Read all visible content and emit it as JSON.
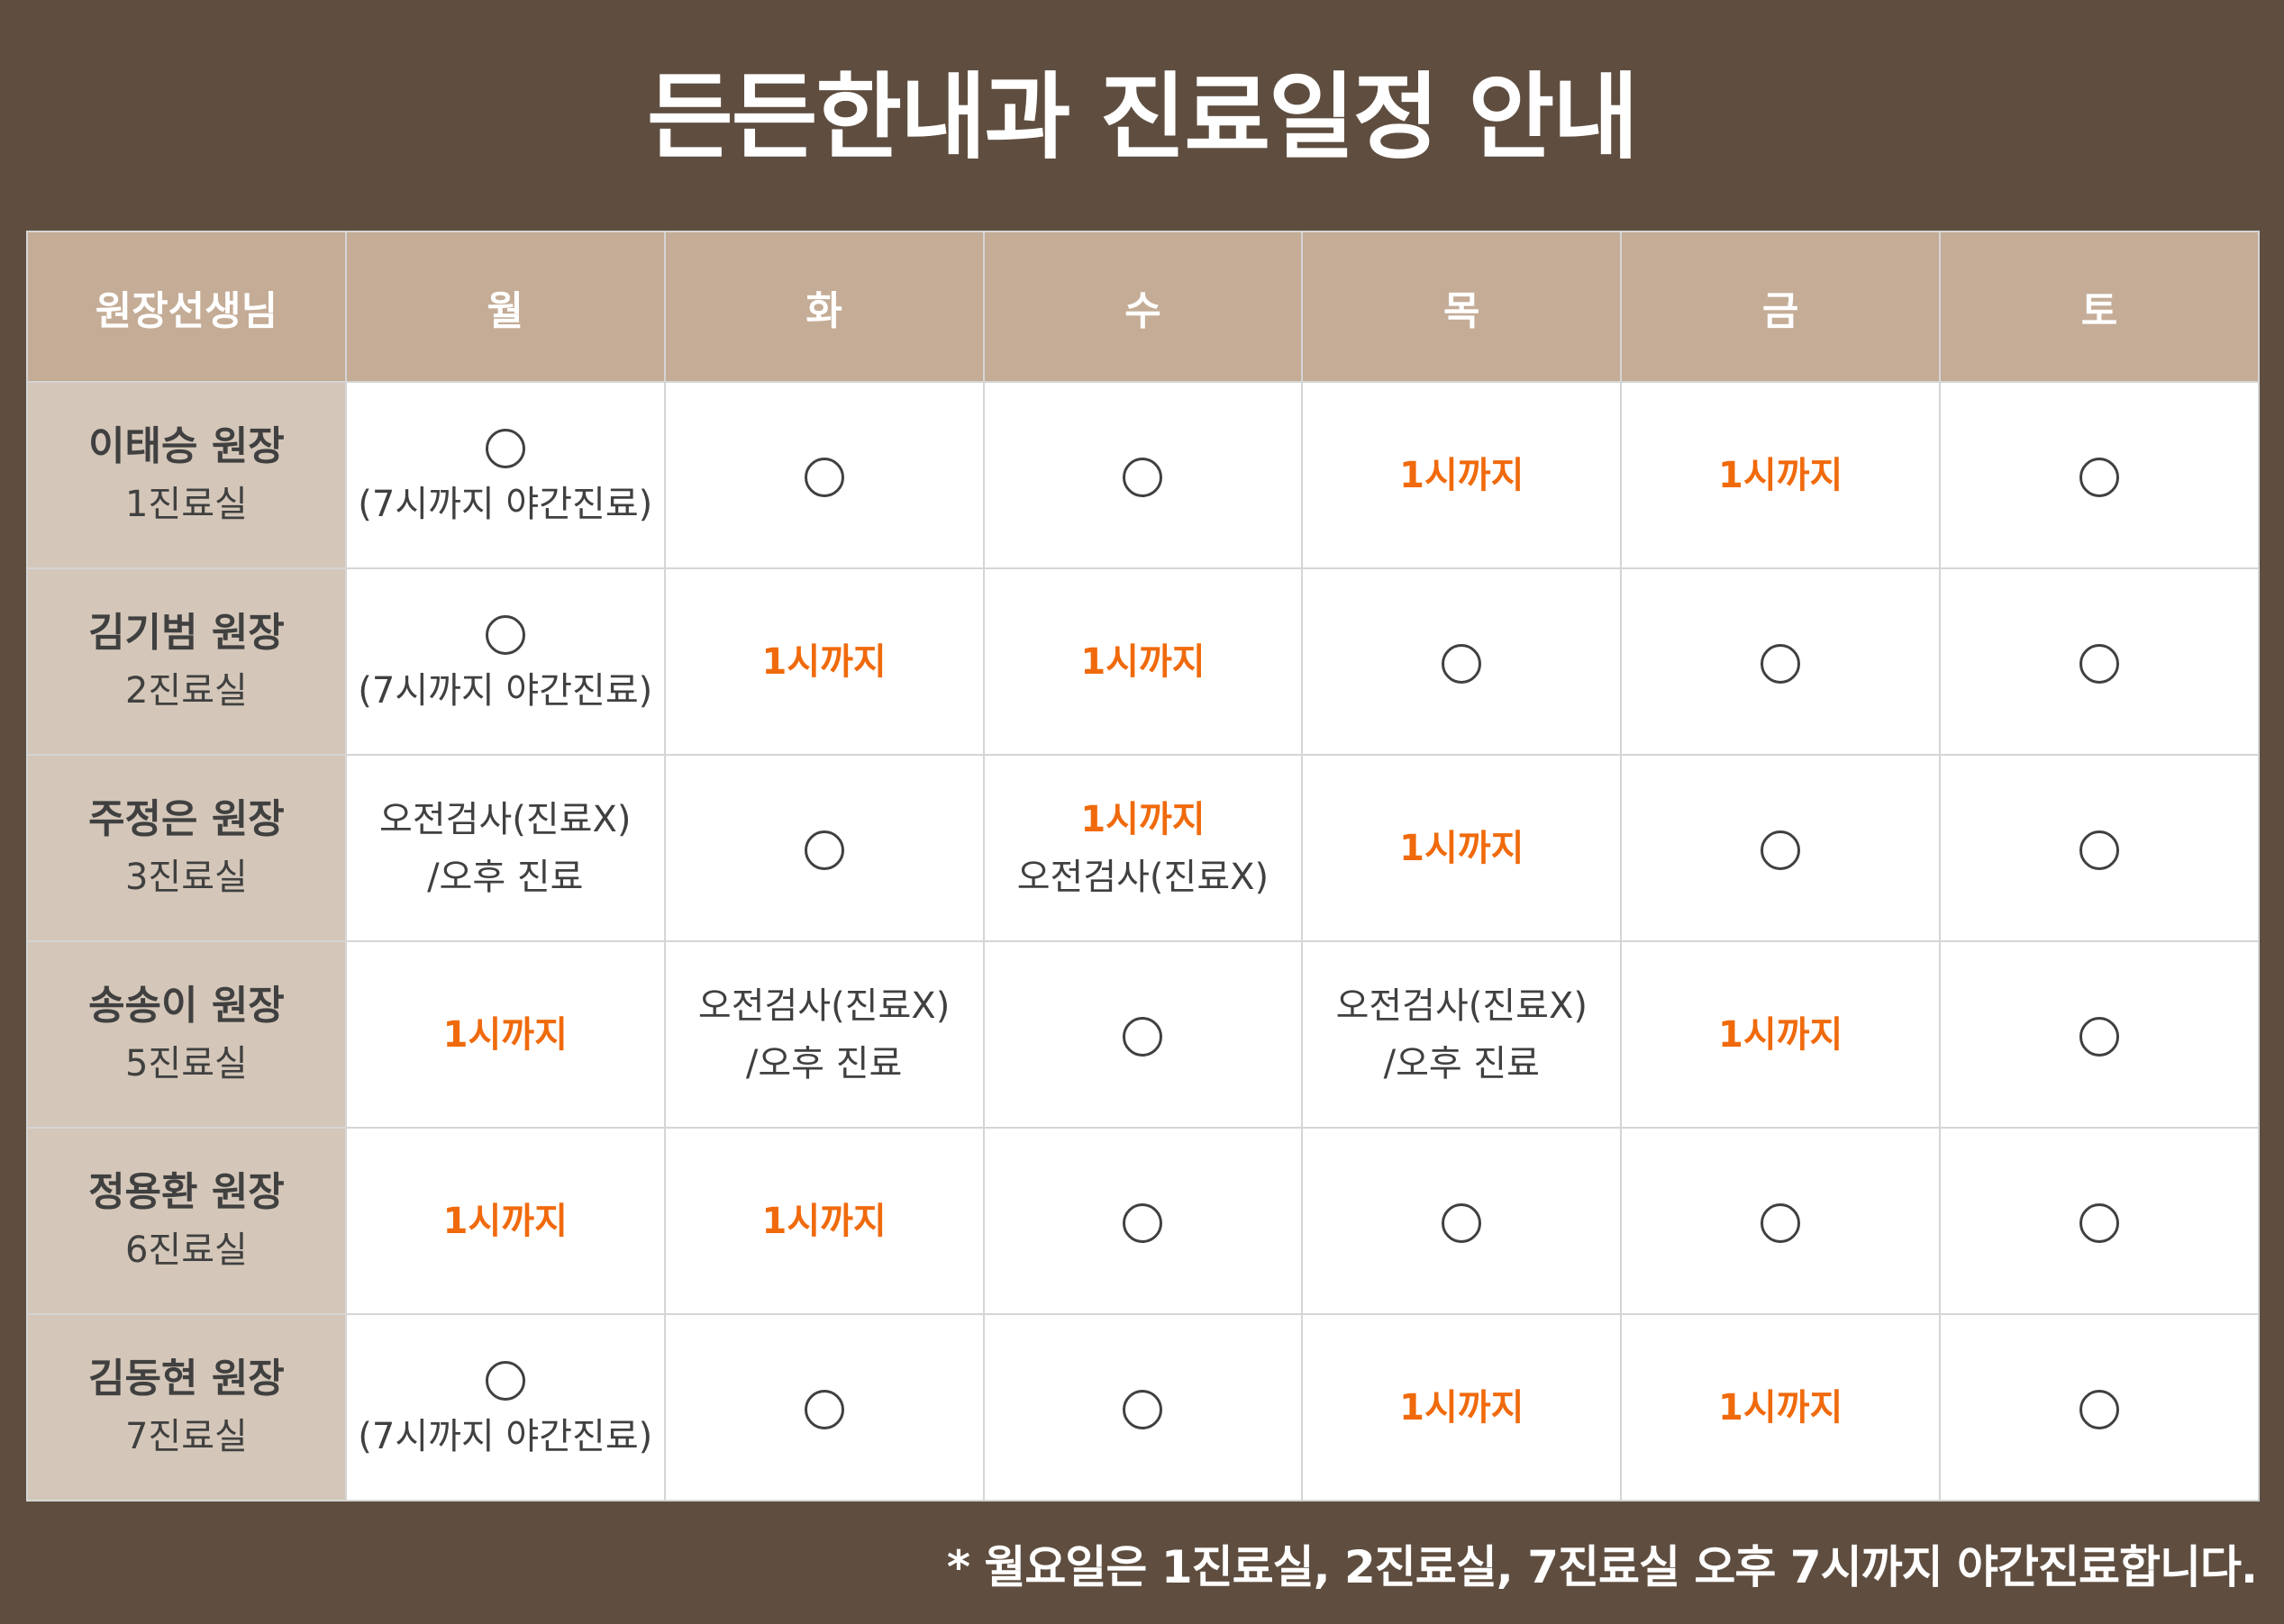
{
  "title": "든든한내과 진료일정 안내",
  "colors": {
    "background": "#5f4e40",
    "header": "#c4ac96",
    "doctor_column": "#d4c7b9",
    "highlight": "#f06a0c",
    "text": "#404040"
  },
  "table": {
    "headers": [
      "원장선생님",
      "월",
      "화",
      "수",
      "목",
      "금",
      "토"
    ],
    "rows": [
      {
        "doctor": "이태승 원장",
        "room": "1진료실",
        "cells": [
          [
            {
              "t": "circle"
            },
            {
              "t": "text",
              "v": "(7시까지 야간진료)"
            }
          ],
          [
            {
              "t": "circle"
            }
          ],
          [
            {
              "t": "circle"
            }
          ],
          [
            {
              "t": "orange",
              "v": "1시까지"
            }
          ],
          [
            {
              "t": "orange",
              "v": "1시까지"
            }
          ],
          [
            {
              "t": "circle"
            }
          ]
        ]
      },
      {
        "doctor": "김기범 원장",
        "room": "2진료실",
        "cells": [
          [
            {
              "t": "circle"
            },
            {
              "t": "text",
              "v": "(7시까지 야간진료)"
            }
          ],
          [
            {
              "t": "orange",
              "v": "1시까지"
            }
          ],
          [
            {
              "t": "orange",
              "v": "1시까지"
            }
          ],
          [
            {
              "t": "circle"
            }
          ],
          [
            {
              "t": "circle"
            }
          ],
          [
            {
              "t": "circle"
            }
          ]
        ]
      },
      {
        "doctor": "주정은 원장",
        "room": "3진료실",
        "cells": [
          [
            {
              "t": "text",
              "v": "오전검사(진료X)"
            },
            {
              "t": "text",
              "v": "/오후 진료"
            }
          ],
          [
            {
              "t": "circle"
            }
          ],
          [
            {
              "t": "orange",
              "v": "1시까지"
            },
            {
              "t": "text",
              "v": "오전검사(진료X)"
            }
          ],
          [
            {
              "t": "orange",
              "v": "1시까지"
            }
          ],
          [
            {
              "t": "circle"
            }
          ],
          [
            {
              "t": "circle"
            }
          ]
        ]
      },
      {
        "doctor": "송송이 원장",
        "room": "5진료실",
        "cells": [
          [
            {
              "t": "orange",
              "v": "1시까지"
            }
          ],
          [
            {
              "t": "text",
              "v": "오전검사(진료X)"
            },
            {
              "t": "text",
              "v": "/오후 진료"
            }
          ],
          [
            {
              "t": "circle"
            }
          ],
          [
            {
              "t": "text",
              "v": "오전검사(진료X)"
            },
            {
              "t": "text",
              "v": "/오후 진료"
            }
          ],
          [
            {
              "t": "orange",
              "v": "1시까지"
            }
          ],
          [
            {
              "t": "circle"
            }
          ]
        ]
      },
      {
        "doctor": "정용환 원장",
        "room": "6진료실",
        "cells": [
          [
            {
              "t": "orange",
              "v": "1시까지"
            }
          ],
          [
            {
              "t": "orange",
              "v": "1시까지"
            }
          ],
          [
            {
              "t": "circle"
            }
          ],
          [
            {
              "t": "circle"
            }
          ],
          [
            {
              "t": "circle"
            }
          ],
          [
            {
              "t": "circle"
            }
          ]
        ]
      },
      {
        "doctor": "김동현 원장",
        "room": "7진료실",
        "cells": [
          [
            {
              "t": "circle"
            },
            {
              "t": "text",
              "v": "(7시까지 야간진료)"
            }
          ],
          [
            {
              "t": "circle"
            }
          ],
          [
            {
              "t": "circle"
            }
          ],
          [
            {
              "t": "orange",
              "v": "1시까지"
            }
          ],
          [
            {
              "t": "orange",
              "v": "1시까지"
            }
          ],
          [
            {
              "t": "circle"
            }
          ]
        ]
      }
    ]
  },
  "note": "* 월요일은 1진료실, 2진료실, 7진료실 오후 7시까지 야간진료합니다."
}
